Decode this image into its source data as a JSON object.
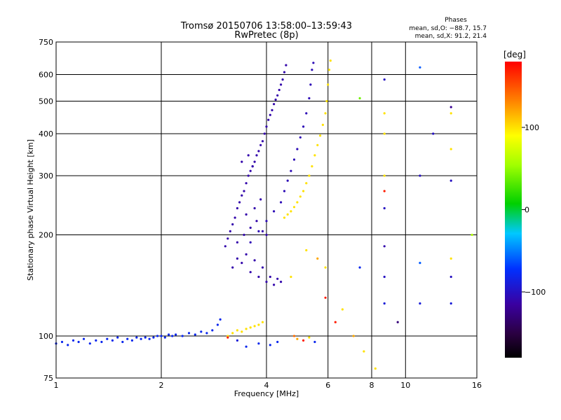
{
  "chart_data": {
    "type": "scatter",
    "title": "Tromsø 20150706 13:58:00–13:59:43",
    "subtitle": "RwPretec (8p)",
    "xlabel": "Frequency [MHz]",
    "ylabel": "Stationary phase Virtual Height [km]",
    "x_scale": "log",
    "y_scale": "log",
    "xlim": [
      1,
      16
    ],
    "ylim": [
      75,
      750
    ],
    "x_ticks": [
      1,
      2,
      4,
      6,
      8,
      10,
      16
    ],
    "x_tick_labels": [
      "1",
      "2",
      "4",
      "6",
      "8",
      "10",
      "16"
    ],
    "y_ticks": [
      75,
      100,
      200,
      300,
      400,
      500,
      600,
      750
    ],
    "y_tick_labels": [
      "75",
      "100",
      "200",
      "300",
      "400",
      "500",
      "600",
      "750"
    ],
    "grid": true,
    "stats": {
      "heading": "Phases",
      "line_o": "mean, sd,O: −88.7, 15.7",
      "line_x": "mean, sd,X:  91.2, 21.4"
    },
    "colorbar": {
      "label": "[deg]",
      "range": [
        -180,
        180
      ],
      "ticks": [
        100,
        0,
        -100
      ],
      "tick_labels": [
        "100",
        "0",
        "−100"
      ],
      "position": "right"
    },
    "series": [
      {
        "trace": "low_layer",
        "points": [
          [
            1.0,
            95,
            -80
          ],
          [
            1.04,
            96,
            -80
          ],
          [
            1.08,
            94,
            -80
          ],
          [
            1.12,
            97,
            -80
          ],
          [
            1.16,
            96,
            -80
          ],
          [
            1.2,
            98,
            -80
          ],
          [
            1.25,
            95,
            -80
          ],
          [
            1.3,
            97,
            -80
          ],
          [
            1.35,
            96,
            -80
          ],
          [
            1.4,
            98,
            -80
          ],
          [
            1.45,
            97,
            -80
          ],
          [
            1.5,
            99,
            -80
          ],
          [
            1.55,
            96,
            -80
          ],
          [
            1.6,
            98,
            -80
          ],
          [
            1.65,
            97,
            -80
          ],
          [
            1.7,
            99,
            -80
          ],
          [
            1.75,
            98,
            -80
          ],
          [
            1.8,
            99,
            -80
          ],
          [
            1.85,
            98,
            -80
          ],
          [
            1.9,
            99,
            -80
          ],
          [
            1.95,
            100,
            -80
          ],
          [
            2.0,
            100,
            -80
          ],
          [
            2.05,
            99,
            -80
          ],
          [
            2.1,
            101,
            -80
          ],
          [
            2.15,
            100,
            -80
          ],
          [
            2.2,
            101,
            -80
          ],
          [
            2.3,
            100,
            -80
          ],
          [
            2.4,
            102,
            -80
          ],
          [
            2.5,
            101,
            -80
          ],
          [
            2.6,
            103,
            -80
          ],
          [
            2.7,
            102,
            -80
          ],
          [
            2.8,
            104,
            -80
          ],
          [
            2.9,
            108,
            -80
          ],
          [
            2.95,
            112,
            -80
          ]
        ]
      },
      {
        "trace": "o_lower",
        "points": [
          [
            3.05,
            185,
            -110
          ],
          [
            3.1,
            195,
            -110
          ],
          [
            3.15,
            205,
            -110
          ],
          [
            3.2,
            215,
            -110
          ],
          [
            3.25,
            225,
            -110
          ],
          [
            3.3,
            240,
            -110
          ],
          [
            3.35,
            250,
            -110
          ],
          [
            3.4,
            262,
            -110
          ],
          [
            3.45,
            270,
            -110
          ],
          [
            3.5,
            285,
            -110
          ],
          [
            3.55,
            300,
            -110
          ],
          [
            3.6,
            310,
            -110
          ],
          [
            3.65,
            320,
            -110
          ],
          [
            3.7,
            330,
            -110
          ],
          [
            3.75,
            345,
            -110
          ],
          [
            3.8,
            355,
            -110
          ],
          [
            3.85,
            370,
            -110
          ],
          [
            3.9,
            380,
            -110
          ],
          [
            3.95,
            400,
            -110
          ],
          [
            4.0,
            420,
            -110
          ],
          [
            4.05,
            440,
            -110
          ],
          [
            4.1,
            455,
            -110
          ],
          [
            4.15,
            470,
            -110
          ],
          [
            4.2,
            490,
            -110
          ],
          [
            4.25,
            505,
            -110
          ],
          [
            4.3,
            520,
            -110
          ],
          [
            4.35,
            540,
            -110
          ],
          [
            4.4,
            560,
            -110
          ],
          [
            4.45,
            580,
            -110
          ],
          [
            4.5,
            610,
            -110
          ],
          [
            4.55,
            640,
            -110
          ]
        ]
      },
      {
        "trace": "o_spread",
        "points": [
          [
            3.2,
            160,
            -110
          ],
          [
            3.3,
            170,
            -110
          ],
          [
            3.4,
            165,
            -110
          ],
          [
            3.5,
            175,
            -110
          ],
          [
            3.6,
            155,
            -110
          ],
          [
            3.7,
            168,
            -110
          ],
          [
            3.8,
            150,
            -110
          ],
          [
            3.9,
            160,
            -110
          ],
          [
            4.0,
            145,
            -110
          ],
          [
            4.1,
            150,
            -110
          ],
          [
            4.2,
            142,
            -110
          ],
          [
            4.3,
            148,
            -110
          ],
          [
            4.4,
            145,
            -110
          ],
          [
            3.3,
            190,
            -110
          ],
          [
            3.45,
            200,
            -110
          ],
          [
            3.6,
            210,
            -110
          ],
          [
            3.75,
            220,
            -110
          ],
          [
            3.9,
            205,
            -110
          ],
          [
            4.0,
            200,
            -110
          ],
          [
            3.5,
            230,
            -110
          ],
          [
            3.7,
            240,
            -110
          ],
          [
            3.85,
            255,
            -110
          ],
          [
            3.4,
            330,
            -110
          ],
          [
            3.55,
            345,
            -110
          ],
          [
            3.65,
            320,
            -110
          ]
        ]
      },
      {
        "trace": "o_upper",
        "points": [
          [
            3.6,
            190,
            -105
          ],
          [
            3.8,
            205,
            -105
          ],
          [
            4.0,
            220,
            -105
          ],
          [
            4.2,
            235,
            -105
          ],
          [
            4.4,
            250,
            -105
          ],
          [
            4.5,
            270,
            -105
          ],
          [
            4.6,
            290,
            -105
          ],
          [
            4.7,
            310,
            -105
          ],
          [
            4.8,
            335,
            -105
          ],
          [
            4.9,
            360,
            -105
          ],
          [
            5.0,
            390,
            -105
          ],
          [
            5.1,
            420,
            -105
          ],
          [
            5.2,
            460,
            -105
          ],
          [
            5.3,
            510,
            -105
          ],
          [
            5.35,
            560,
            -105
          ],
          [
            5.4,
            620,
            -105
          ],
          [
            5.45,
            650,
            -105
          ]
        ]
      },
      {
        "trace": "x_trace",
        "points": [
          [
            4.5,
            225,
            100
          ],
          [
            4.6,
            230,
            100
          ],
          [
            4.7,
            235,
            100
          ],
          [
            4.8,
            242,
            100
          ],
          [
            4.9,
            250,
            100
          ],
          [
            5.0,
            260,
            100
          ],
          [
            5.1,
            270,
            100
          ],
          [
            5.2,
            285,
            100
          ],
          [
            5.3,
            300,
            100
          ],
          [
            5.4,
            320,
            100
          ],
          [
            5.5,
            345,
            100
          ],
          [
            5.6,
            370,
            100
          ],
          [
            5.7,
            395,
            100
          ],
          [
            5.8,
            425,
            100
          ],
          [
            5.9,
            460,
            100
          ],
          [
            5.95,
            500,
            100
          ],
          [
            6.0,
            560,
            100
          ],
          [
            6.05,
            620,
            100
          ],
          [
            6.1,
            660,
            100
          ]
        ]
      },
      {
        "trace": "x_low",
        "points": [
          [
            3.1,
            100,
            100
          ],
          [
            3.2,
            102,
            100
          ],
          [
            3.3,
            104,
            100
          ],
          [
            3.4,
            103,
            100
          ],
          [
            3.5,
            105,
            100
          ],
          [
            3.6,
            106,
            100
          ],
          [
            3.7,
            107,
            100
          ],
          [
            3.8,
            108,
            100
          ],
          [
            3.9,
            110,
            100
          ]
        ]
      },
      {
        "trace": "scattered",
        "points": [
          [
            8.7,
            580,
            -100
          ],
          [
            8.7,
            400,
            100
          ],
          [
            8.7,
            300,
            100
          ],
          [
            8.7,
            270,
            170
          ],
          [
            8.7,
            240,
            -100
          ],
          [
            8.7,
            185,
            -110
          ],
          [
            8.7,
            150,
            -100
          ],
          [
            8.7,
            125,
            -90
          ],
          [
            8.7,
            460,
            100
          ],
          [
            9.5,
            110,
            -130
          ],
          [
            11.0,
            630,
            -60
          ],
          [
            11.0,
            300,
            -100
          ],
          [
            11.0,
            165,
            -60
          ],
          [
            11.0,
            125,
            -90
          ],
          [
            12.0,
            400,
            -100
          ],
          [
            13.5,
            480,
            -120
          ],
          [
            13.5,
            460,
            100
          ],
          [
            13.5,
            360,
            100
          ],
          [
            13.5,
            290,
            -100
          ],
          [
            13.5,
            170,
            100
          ],
          [
            13.5,
            150,
            -100
          ],
          [
            13.5,
            125,
            -90
          ],
          [
            15.5,
            200,
            60
          ],
          [
            7.4,
            510,
            40
          ],
          [
            7.4,
            160,
            -80
          ],
          [
            5.9,
            130,
            170
          ],
          [
            6.3,
            110,
            170
          ],
          [
            6.6,
            120,
            100
          ],
          [
            7.1,
            100,
            120
          ],
          [
            7.6,
            90,
            100
          ],
          [
            8.2,
            80,
            100
          ],
          [
            5.2,
            180,
            100
          ],
          [
            5.6,
            170,
            120
          ],
          [
            5.9,
            160,
            100
          ],
          [
            4.7,
            150,
            100
          ],
          [
            4.8,
            100,
            140
          ],
          [
            4.9,
            98,
            120
          ],
          [
            5.1,
            97,
            170
          ],
          [
            5.3,
            99,
            100
          ],
          [
            5.5,
            96,
            -80
          ],
          [
            4.3,
            96,
            -80
          ],
          [
            4.1,
            94,
            -80
          ],
          [
            3.8,
            95,
            -80
          ],
          [
            3.5,
            93,
            -80
          ],
          [
            3.3,
            97,
            -90
          ],
          [
            3.1,
            99,
            170
          ]
        ]
      }
    ]
  }
}
